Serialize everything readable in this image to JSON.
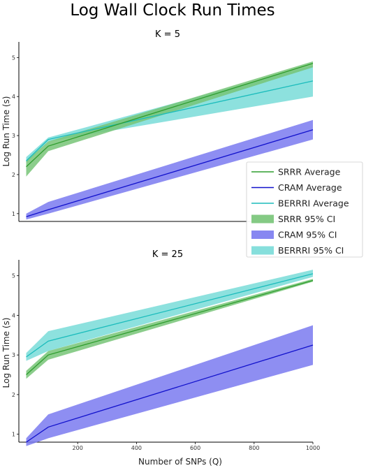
{
  "suptitle": "Log Wall Clock Run Times",
  "colors": {
    "SRRR": "#2e9d2e",
    "SRRR_band": "#77c477",
    "CRAM": "#1111cc",
    "CRAM_band": "#7a7af0",
    "BERRRI": "#1bbcbc",
    "BERRRI_band": "#79dcd8"
  },
  "legend": {
    "placement": "right, overlapping lower-right of top panel",
    "entries": [
      {
        "label": "SRRR Average",
        "kind": "line",
        "key": "SRRR"
      },
      {
        "label": "CRAM Average",
        "kind": "line",
        "key": "CRAM"
      },
      {
        "label": "BERRRI Average",
        "kind": "line",
        "key": "BERRRI"
      },
      {
        "label": "SRRR 95% CI",
        "kind": "band",
        "key": "SRRR_band"
      },
      {
        "label": "CRAM 95% CI",
        "kind": "band",
        "key": "CRAM_band"
      },
      {
        "label": "BERRRI 95% CI",
        "kind": "band",
        "key": "BERRRI_band"
      }
    ]
  },
  "chart_data": [
    {
      "type": "line",
      "title": "K = 5",
      "xlabel": "",
      "ylabel": "Log Run Time (s)",
      "xlim": [
        0,
        1000
      ],
      "ylim": [
        0.8,
        5.4
      ],
      "yticks": [
        1,
        2,
        3,
        4,
        5
      ],
      "xticks": [],
      "grid": false,
      "x": [
        25,
        100,
        1000
      ],
      "series": [
        {
          "name": "SRRR",
          "mean": [
            2.2,
            2.73,
            4.85
          ],
          "lower": [
            1.95,
            2.6,
            4.75
          ],
          "upper": [
            2.35,
            2.85,
            4.9
          ]
        },
        {
          "name": "CRAM",
          "mean": [
            0.92,
            1.1,
            3.15
          ],
          "lower": [
            0.85,
            1.0,
            2.9
          ],
          "upper": [
            1.0,
            1.3,
            3.4
          ]
        },
        {
          "name": "BERRRI",
          "mean": [
            2.35,
            2.9,
            4.4
          ],
          "lower": [
            2.3,
            2.85,
            4.0
          ],
          "upper": [
            2.45,
            2.95,
            4.8
          ]
        }
      ]
    },
    {
      "type": "line",
      "title": "K = 25",
      "xlabel": "Number of SNPs (Q)",
      "ylabel": "Log Run Time (s)",
      "xlim": [
        0,
        1000
      ],
      "ylim": [
        0.8,
        5.4
      ],
      "yticks": [
        1,
        2,
        3,
        4,
        5
      ],
      "xticks": [
        200,
        400,
        600,
        800,
        1000
      ],
      "grid": false,
      "x": [
        25,
        100,
        1000
      ],
      "series": [
        {
          "name": "SRRR",
          "mean": [
            2.5,
            3.0,
            4.88
          ],
          "lower": [
            2.4,
            2.88,
            4.85
          ],
          "upper": [
            2.6,
            3.1,
            4.92
          ]
        },
        {
          "name": "CRAM",
          "mean": [
            0.8,
            1.18,
            3.25
          ],
          "lower": [
            0.7,
            0.9,
            2.75
          ],
          "upper": [
            0.9,
            1.5,
            3.75
          ]
        },
        {
          "name": "BERRRI",
          "mean": [
            2.95,
            3.35,
            5.05
          ],
          "lower": [
            2.85,
            3.1,
            4.97
          ],
          "upper": [
            3.05,
            3.6,
            5.15
          ]
        }
      ]
    }
  ]
}
